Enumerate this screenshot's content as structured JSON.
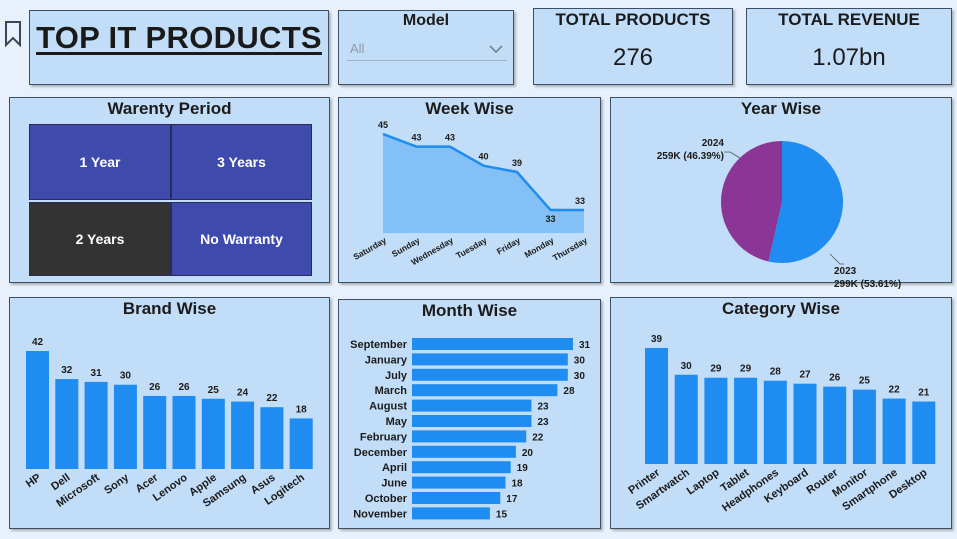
{
  "header": {
    "title": "TOP IT PRODUCTS",
    "bookmark_icon": "bookmark-icon"
  },
  "model_filter": {
    "title": "Model",
    "selected": "All"
  },
  "kpis": {
    "total_products": {
      "label": "TOTAL PRODUCTS",
      "value": "276"
    },
    "total_revenue": {
      "label": "TOTAL REVENUE",
      "value": "1.07bn"
    }
  },
  "warranty": {
    "title": "Warenty Period",
    "tiles": [
      {
        "label": "1 Year",
        "color": "#3f4aad"
      },
      {
        "label": "3 Years",
        "color": "#3f4aad"
      },
      {
        "label": "2 Years",
        "color": "#333333"
      },
      {
        "label": "No Warranty",
        "color": "#3f4aad"
      }
    ]
  },
  "colors": {
    "accent": "#1e8cf0",
    "area_fill": "#7cbdf5",
    "pie_2023": "#1e8cf0",
    "pie_2024": "#8b3597"
  },
  "chart_data": [
    {
      "id": "week",
      "type": "area",
      "title": "Week Wise",
      "categories": [
        "Saturday",
        "Sunday",
        "Wednesday",
        "Tuesday",
        "Friday",
        "Monday",
        "Thursday"
      ],
      "values": [
        45,
        43,
        43,
        40,
        39,
        33,
        33
      ]
    },
    {
      "id": "year",
      "type": "pie",
      "title": "Year Wise",
      "slices": [
        {
          "label": "2023",
          "value_label": "299K (53.61%)",
          "value": 299,
          "percent": 53.61
        },
        {
          "label": "2024",
          "value_label": "259K (46.39%)",
          "value": 259,
          "percent": 46.39
        }
      ]
    },
    {
      "id": "brand",
      "type": "bar",
      "title": "Brand Wise",
      "categories": [
        "HP",
        "Dell",
        "Microsoft",
        "Sony",
        "Acer",
        "Lenovo",
        "Apple",
        "Samsung",
        "Asus",
        "Logitech"
      ],
      "values": [
        42,
        32,
        31,
        30,
        26,
        26,
        25,
        24,
        22,
        18
      ]
    },
    {
      "id": "month",
      "type": "bar",
      "orientation": "horizontal",
      "title": "Month Wise",
      "categories": [
        "September",
        "January",
        "July",
        "March",
        "August",
        "May",
        "February",
        "December",
        "April",
        "June",
        "October",
        "November"
      ],
      "values": [
        31,
        30,
        30,
        28,
        23,
        23,
        22,
        20,
        19,
        18,
        17,
        15
      ]
    },
    {
      "id": "category",
      "type": "bar",
      "title": "Category Wise",
      "categories": [
        "Printer",
        "Smartwatch",
        "Laptop",
        "Tablet",
        "Headphones",
        "Keyboard",
        "Router",
        "Monitor",
        "Smartphone",
        "Desktop"
      ],
      "values": [
        39,
        30,
        29,
        29,
        28,
        27,
        26,
        25,
        22,
        21
      ]
    }
  ]
}
